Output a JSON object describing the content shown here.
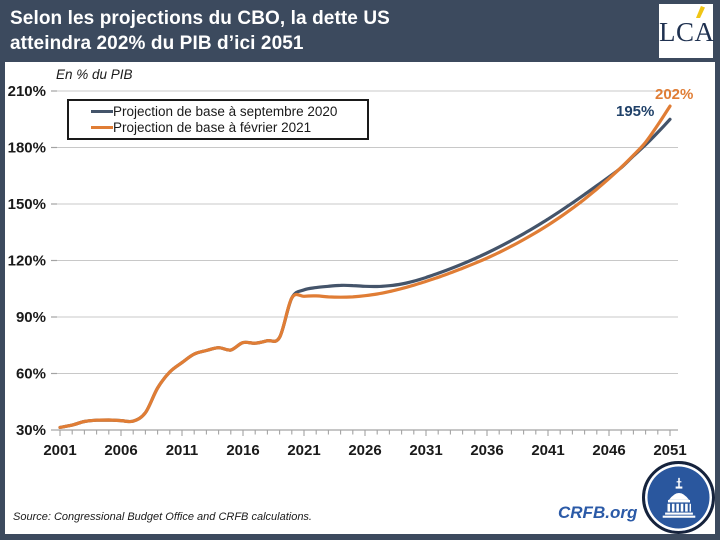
{
  "header": {
    "title_line1": "Selon les projections du CBO, la dette US",
    "title_line2": "atteindra 202% du PIB d’ici 2051",
    "logo_text": "LCA"
  },
  "axis_note": "En % du PIB",
  "legend": [
    {
      "label": "Projection de base à septembre 2020",
      "color": "#44546A"
    },
    {
      "label": "Projection de base à février 2021",
      "color": "#E07D35"
    }
  ],
  "end_labels": {
    "feb2021": "202%",
    "sept2020": "195%"
  },
  "footer": {
    "source": "Source: Congressional Budget Office and CRFB calculations.",
    "site": "CRFB.org"
  },
  "colors": {
    "header_bg": "#3C4A5E",
    "navy_line": "#44546A",
    "orange_line": "#E07D35",
    "end_label_navy": "#1F4068",
    "crfb_blue": "#2B5AA7",
    "logo_accent_yellow": "#F0C515",
    "gridline": "#C8C8C8",
    "axis": "#A3A3A3"
  },
  "chart_data": {
    "type": "line",
    "title": "Selon les projections du CBO, la dette US atteindra 202% du PIB d’ici 2051",
    "ylabel": "En % du PIB",
    "xlabel": "",
    "xlim": [
      2001,
      2051
    ],
    "ylim": [
      30,
      210
    ],
    "grid": "horizontal",
    "legend_position": "top-left",
    "x_ticks": [
      2001,
      2006,
      2011,
      2016,
      2021,
      2026,
      2031,
      2036,
      2041,
      2046,
      2051
    ],
    "y_ticks": [
      {
        "label": "210%",
        "value": 210
      },
      {
        "label": "180%",
        "value": 180
      },
      {
        "label": "150%",
        "value": 150
      },
      {
        "label": "120%",
        "value": 120
      },
      {
        "label": "90%",
        "value": 90
      },
      {
        "label": "60%",
        "value": 60
      },
      {
        "label": "30%",
        "value": 30
      }
    ],
    "x": [
      2001,
      2002,
      2003,
      2004,
      2005,
      2006,
      2007,
      2008,
      2009,
      2010,
      2011,
      2012,
      2013,
      2014,
      2015,
      2016,
      2017,
      2018,
      2019,
      2020,
      2021,
      2022,
      2023,
      2024,
      2025,
      2026,
      2027,
      2028,
      2029,
      2030,
      2031,
      2032,
      2033,
      2034,
      2035,
      2036,
      2037,
      2038,
      2039,
      2040,
      2041,
      2042,
      2043,
      2044,
      2045,
      2046,
      2047,
      2048,
      2049,
      2050,
      2051
    ],
    "series": [
      {
        "name": "Projection de base à septembre 2020",
        "color": "#44546A",
        "end_value_label": "195%",
        "values": [
          31.4,
          32.6,
          34.5,
          35.2,
          35.3,
          35.0,
          34.7,
          39.2,
          52.3,
          60.8,
          65.8,
          70.3,
          72.2,
          73.7,
          72.5,
          76.4,
          76.1,
          77.4,
          79.2,
          100.1,
          104.4,
          105.6,
          106.3,
          106.8,
          106.7,
          106.3,
          106.2,
          106.6,
          107.5,
          109.0,
          111.0,
          113.2,
          115.6,
          118.2,
          121.0,
          124.0,
          127.2,
          130.6,
          134.2,
          138.0,
          142.0,
          146.2,
          150.6,
          155.1,
          159.7,
          164.4,
          169.3,
          175.5,
          181.5,
          188.0,
          195.0
        ]
      },
      {
        "name": "Projection de base à février 2021",
        "color": "#E07D35",
        "end_value_label": "202%",
        "values": [
          31.4,
          32.6,
          34.5,
          35.2,
          35.3,
          35.0,
          34.7,
          39.2,
          52.3,
          60.8,
          65.8,
          70.3,
          72.2,
          73.7,
          72.5,
          76.4,
          76.1,
          77.4,
          79.2,
          100.1,
          101.0,
          101.2,
          100.7,
          100.5,
          100.7,
          101.3,
          102.2,
          103.5,
          105.1,
          106.9,
          108.9,
          111.1,
          113.4,
          115.9,
          118.5,
          121.3,
          124.3,
          127.6,
          131.1,
          134.8,
          138.8,
          143.1,
          147.7,
          152.6,
          157.9,
          163.5,
          169.5,
          175.9,
          182.8,
          192.0,
          202.0
        ]
      }
    ]
  }
}
